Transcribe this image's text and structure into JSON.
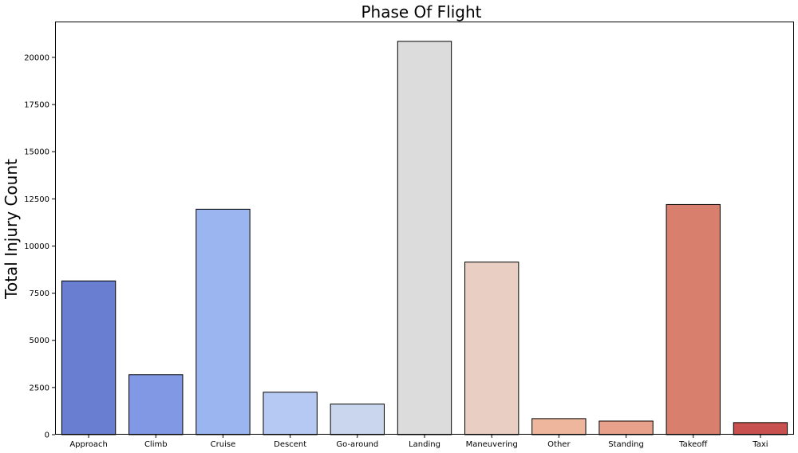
{
  "chart_data": {
    "type": "bar",
    "title": "Phase Of Flight",
    "xlabel": "",
    "ylabel": "Total Injury Count",
    "categories": [
      "Approach",
      "Climb",
      "Cruise",
      "Descent",
      "Go-around",
      "Landing",
      "Maneuvering",
      "Other",
      "Standing",
      "Takeoff",
      "Taxi"
    ],
    "values": [
      8150,
      3180,
      11950,
      2250,
      1620,
      20850,
      9150,
      850,
      720,
      12200,
      640
    ],
    "colors": [
      "#6a7ed1",
      "#8199e5",
      "#9ab5ef",
      "#b5c9f2",
      "#cad6ee",
      "#dcdcdc",
      "#e9cfc3",
      "#eeb69d",
      "#e8a18a",
      "#d97f6d",
      "#c8514f"
    ],
    "ylim": [
      0,
      21900
    ],
    "yticks": [
      0,
      2500,
      5000,
      7500,
      10000,
      12500,
      15000,
      17500,
      20000
    ],
    "grid": false,
    "legend": "none"
  }
}
